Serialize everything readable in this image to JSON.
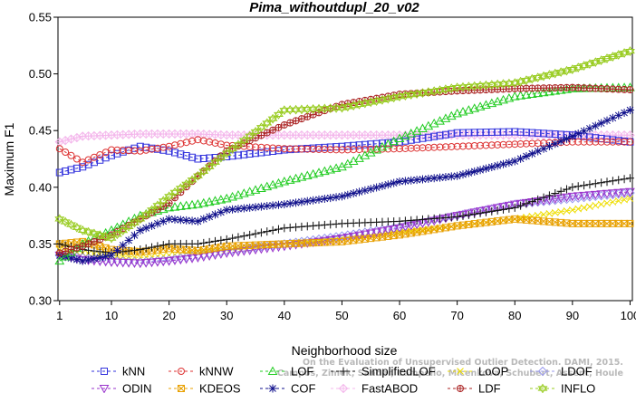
{
  "chart_data": {
    "type": "line",
    "title": "Pima_withoutdupl_20_v02",
    "xlabel": "Neighborhood size",
    "ylabel": "Maximum F1",
    "xlim": [
      1,
      100
    ],
    "ylim": [
      0.3,
      0.55
    ],
    "xticks": [
      1,
      10,
      20,
      30,
      40,
      50,
      60,
      70,
      80,
      90,
      100
    ],
    "yticks": [
      0.3,
      0.35,
      0.4,
      0.45,
      0.5,
      0.55
    ],
    "ytick_labels": [
      "0.30",
      "0.35",
      "0.40",
      "0.45",
      "0.50",
      "0.55"
    ],
    "grid": false,
    "legend_position": "bottom",
    "watermark": [
      "Campos, Zimek, Sander, Campello, Micenkova, Schubert, Assent, Houle",
      "On the Evaluation of Unsupervised Outlier Detection. DAMI, 2015."
    ],
    "series": [
      {
        "name": "kNN",
        "color": "#3333dd",
        "marker": "square",
        "line": "dashed",
        "knots_x": [
          1,
          5,
          10,
          15,
          20,
          25,
          30,
          40,
          50,
          60,
          70,
          80,
          90,
          100
        ],
        "knots_y": [
          0.413,
          0.418,
          0.428,
          0.436,
          0.432,
          0.425,
          0.427,
          0.433,
          0.436,
          0.44,
          0.448,
          0.449,
          0.446,
          0.44
        ]
      },
      {
        "name": "kNNW",
        "color": "#dd3333",
        "marker": "circle",
        "line": "dashed",
        "knots_x": [
          1,
          5,
          10,
          15,
          20,
          25,
          30,
          40,
          50,
          60,
          70,
          80,
          90,
          100
        ],
        "knots_y": [
          0.434,
          0.422,
          0.433,
          0.432,
          0.436,
          0.442,
          0.437,
          0.434,
          0.433,
          0.434,
          0.436,
          0.438,
          0.44,
          0.44
        ]
      },
      {
        "name": "LOF",
        "color": "#22cc22",
        "marker": "triangle",
        "line": "dashed",
        "knots_x": [
          1,
          5,
          10,
          15,
          20,
          25,
          30,
          40,
          50,
          60,
          70,
          80,
          90,
          100
        ],
        "knots_y": [
          0.335,
          0.35,
          0.362,
          0.375,
          0.382,
          0.385,
          0.39,
          0.405,
          0.418,
          0.443,
          0.465,
          0.48,
          0.487,
          0.488
        ]
      },
      {
        "name": "SimplifiedLOF",
        "color": "#111111",
        "marker": "plus",
        "line": "dashed",
        "knots_x": [
          1,
          5,
          10,
          15,
          20,
          25,
          30,
          40,
          50,
          60,
          70,
          80,
          90,
          100
        ],
        "knots_y": [
          0.35,
          0.345,
          0.342,
          0.345,
          0.35,
          0.35,
          0.354,
          0.364,
          0.368,
          0.37,
          0.374,
          0.382,
          0.4,
          0.408
        ]
      },
      {
        "name": "LoOP",
        "color": "#eedd00",
        "marker": "x",
        "line": "dashed",
        "knots_x": [
          1,
          5,
          10,
          15,
          20,
          25,
          30,
          40,
          50,
          60,
          70,
          80,
          90,
          100
        ],
        "knots_y": [
          0.345,
          0.342,
          0.34,
          0.338,
          0.34,
          0.343,
          0.345,
          0.35,
          0.355,
          0.36,
          0.366,
          0.372,
          0.38,
          0.39
        ]
      },
      {
        "name": "LDOF",
        "color": "#9999ee",
        "marker": "diamond",
        "line": "dashed",
        "knots_x": [
          1,
          5,
          10,
          15,
          20,
          25,
          30,
          40,
          50,
          60,
          70,
          80,
          90,
          100
        ],
        "knots_y": [
          0.34,
          0.338,
          0.335,
          0.334,
          0.336,
          0.34,
          0.344,
          0.35,
          0.357,
          0.365,
          0.375,
          0.385,
          0.39,
          0.395
        ]
      },
      {
        "name": "ODIN",
        "color": "#9933cc",
        "marker": "triangle-down",
        "line": "dashed",
        "knots_x": [
          1,
          5,
          10,
          15,
          20,
          25,
          30,
          40,
          50,
          60,
          70,
          80,
          90,
          100
        ],
        "knots_y": [
          0.34,
          0.336,
          0.334,
          0.333,
          0.335,
          0.338,
          0.342,
          0.348,
          0.355,
          0.364,
          0.375,
          0.385,
          0.392,
          0.396
        ]
      },
      {
        "name": "KDEOS",
        "color": "#e8a000",
        "marker": "boxx",
        "line": "dashed",
        "knots_x": [
          1,
          5,
          10,
          15,
          20,
          25,
          30,
          40,
          50,
          60,
          70,
          80,
          90,
          100
        ],
        "knots_y": [
          0.35,
          0.352,
          0.345,
          0.343,
          0.346,
          0.344,
          0.348,
          0.35,
          0.352,
          0.358,
          0.366,
          0.372,
          0.368,
          0.368
        ]
      },
      {
        "name": "COF",
        "color": "#11118c",
        "marker": "asterisk",
        "line": "dashed",
        "knots_x": [
          1,
          5,
          10,
          15,
          20,
          25,
          30,
          40,
          50,
          60,
          70,
          80,
          90,
          100
        ],
        "knots_y": [
          0.34,
          0.335,
          0.34,
          0.362,
          0.372,
          0.37,
          0.38,
          0.385,
          0.392,
          0.405,
          0.41,
          0.423,
          0.445,
          0.468
        ]
      },
      {
        "name": "FastABOD",
        "color": "#f4b8ec",
        "marker": "diamond-plus",
        "line": "dashed",
        "knots_x": [
          1,
          5,
          10,
          15,
          20,
          25,
          30,
          40,
          50,
          60,
          70,
          80,
          90,
          100
        ],
        "knots_y": [
          0.44,
          0.445,
          0.446,
          0.447,
          0.447,
          0.447,
          0.446,
          0.446,
          0.446,
          0.446,
          0.446,
          0.446,
          0.446,
          0.446
        ]
      },
      {
        "name": "LDF",
        "color": "#aa2222",
        "marker": "circle-plus",
        "line": "dashed",
        "knots_x": [
          1,
          5,
          10,
          15,
          20,
          25,
          30,
          40,
          50,
          60,
          70,
          80,
          90,
          100
        ],
        "knots_y": [
          0.342,
          0.348,
          0.358,
          0.372,
          0.386,
          0.41,
          0.432,
          0.455,
          0.473,
          0.482,
          0.485,
          0.487,
          0.488,
          0.486
        ]
      },
      {
        "name": "INFLO",
        "color": "#99cc22",
        "marker": "star-of-david",
        "line": "dashed",
        "knots_x": [
          1,
          5,
          10,
          15,
          20,
          25,
          30,
          40,
          50,
          60,
          70,
          80,
          90,
          100
        ],
        "knots_y": [
          0.372,
          0.362,
          0.355,
          0.372,
          0.392,
          0.41,
          0.43,
          0.468,
          0.47,
          0.48,
          0.488,
          0.492,
          0.504,
          0.52
        ]
      }
    ]
  }
}
